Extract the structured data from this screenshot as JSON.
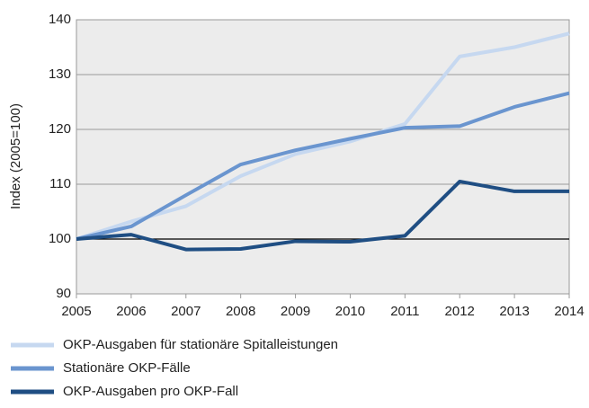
{
  "chart_data": {
    "type": "line",
    "y_label": "Index (2005=100)",
    "x": [
      2005,
      2006,
      2007,
      2008,
      2009,
      2010,
      2011,
      2012,
      2013,
      2014
    ],
    "series": [
      {
        "name": "OKP-Ausgaben für stationäre Spitalleistungen",
        "color": "#c6d8f0",
        "values": [
          100,
          103.2,
          106,
          111.5,
          115.5,
          117.8,
          121,
          133.3,
          135,
          137.5
        ]
      },
      {
        "name": "Stationäre OKP-Fälle",
        "color": "#6a95cf",
        "values": [
          100,
          102.3,
          108,
          113.6,
          116.2,
          118.3,
          120.3,
          120.6,
          124.1,
          126.6
        ]
      },
      {
        "name": "OKP-Ausgaben pro OKP-Fall",
        "color": "#1f4e83",
        "values": [
          100,
          100.8,
          98.1,
          98.2,
          99.6,
          99.5,
          100.6,
          110.5,
          108.7,
          108.7
        ]
      }
    ],
    "xlim": [
      2005,
      2014
    ],
    "xticks": [
      2005,
      2006,
      2007,
      2008,
      2009,
      2010,
      2011,
      2012,
      2013,
      2014
    ],
    "ylim": [
      90,
      140
    ],
    "yticks": [
      90,
      100,
      110,
      120,
      130,
      140
    ],
    "grid": true,
    "baseline": 100
  }
}
